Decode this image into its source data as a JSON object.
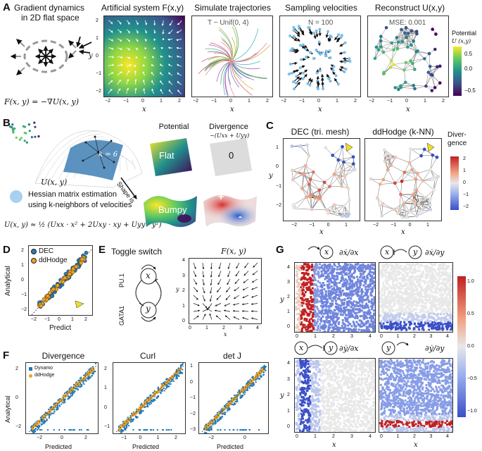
{
  "panelA": {
    "label": "A",
    "intro": [
      "Gradient dynamics",
      "in 2D flat space"
    ],
    "formula": "F(x, y) = −∇U(x, y)",
    "t1": "Artificial system F(x,y)",
    "t2": "Simulate trajectories",
    "t3": "Sampling velocities",
    "t4": "Reconstruct U(x,y)",
    "sub2": "T ~  Unif(0, 4)",
    "sub3": "N = 100",
    "sub4": "MSE: 0.001",
    "xticks": [
      "−2",
      "−1",
      "0",
      "1",
      "2"
    ],
    "yticks": [
      "2",
      "1",
      "0",
      "−1",
      "−2"
    ],
    "xlab": "x",
    "ylab": "y",
    "cbar_title": "Potential",
    "cbar_sub": "U (x,y)",
    "cbar_ticks": [
      "0.5",
      "0.0",
      "−0.5"
    ]
  },
  "panelB": {
    "label": "B",
    "k": "k = 6",
    "u": "U(x, y)",
    "shape": "Shape is",
    "hess1": "Hessian matrix estimation",
    "hess2": "using k-neighbors of velocities",
    "eq": "U(x, y) ≈ ½ (Uxx · x² + 2Uxy · xy + Uyy · y²)",
    "potential": "Potential",
    "divergence": "Divergence",
    "divsub": "−(Uxx + Uyy)",
    "flat": "Flat",
    "zero": "0",
    "bumpy": "Bumpy",
    "plus": "+",
    "minus": "-"
  },
  "panelC": {
    "label": "C",
    "t1": "DEC (tri. mesh)",
    "t2": "ddHodge (k-NN)",
    "cbar_title": [
      "Diver-",
      "gence"
    ],
    "cbar_ticks": [
      "2",
      "1",
      "0",
      "−1",
      "−2"
    ],
    "xticks": [
      "−2",
      "−1",
      "0",
      "1"
    ],
    "yticks": [
      "1",
      "0",
      "−1",
      "−2"
    ],
    "xlab": "x",
    "ylab": "y"
  },
  "panelD": {
    "label": "D",
    "legend": [
      "DEC",
      "ddHodge"
    ],
    "ylab": "Analytical",
    "xlab": "Predict",
    "xticks": [
      "−2",
      "−1",
      "0",
      "1",
      "2"
    ],
    "yticks": [
      "2",
      "1",
      "0",
      "−1",
      "−2"
    ]
  },
  "panelE": {
    "label": "E",
    "title": "Toggle switch",
    "ftitle": "F(x, y)",
    "pu1": "PU.1",
    "gata1": "GATA1",
    "x": "x",
    "y": "y",
    "xticks": [
      "0",
      "1",
      "2",
      "3",
      "4"
    ],
    "yticks": [
      "4",
      "3",
      "2",
      "1",
      "0"
    ]
  },
  "panelF": {
    "label": "F",
    "t1": "Divergence",
    "t2": "Curl",
    "t3": "det J",
    "legend": [
      "Dynamo",
      "ddHodge"
    ],
    "ylab": "Analytical",
    "xlab": "Predicted",
    "f1x": [
      "−2",
      "0",
      "2"
    ],
    "f1y": [
      "2",
      "0",
      "−2"
    ],
    "f2x": [
      "−1",
      "0",
      "1",
      "2"
    ],
    "f2y": [
      "2",
      "1",
      "0",
      "−1"
    ],
    "f3x": [
      "−2",
      "0"
    ],
    "f3y": [
      "1",
      "0",
      "−1",
      "−2",
      "−3"
    ]
  },
  "panelG": {
    "label": "G",
    "g1": "∂ẋ/∂x",
    "g2": "∂ẋ/∂y",
    "g3": "∂ẏ/∂x",
    "g4": "∂ẏ/∂y",
    "xlab": "x",
    "ylab": "y",
    "ticks": [
      "0",
      "1",
      "2",
      "3",
      "4"
    ],
    "yticks": [
      "4",
      "3",
      "2",
      "1",
      "0"
    ],
    "cbar_ticks": [
      "1.0",
      "0.5",
      "0.0",
      "−0.5",
      "−1.0"
    ]
  },
  "colors": {
    "dec": "#2a7ab0",
    "ddhodge": "#f0a020",
    "dynamo": "#1f77b4"
  }
}
